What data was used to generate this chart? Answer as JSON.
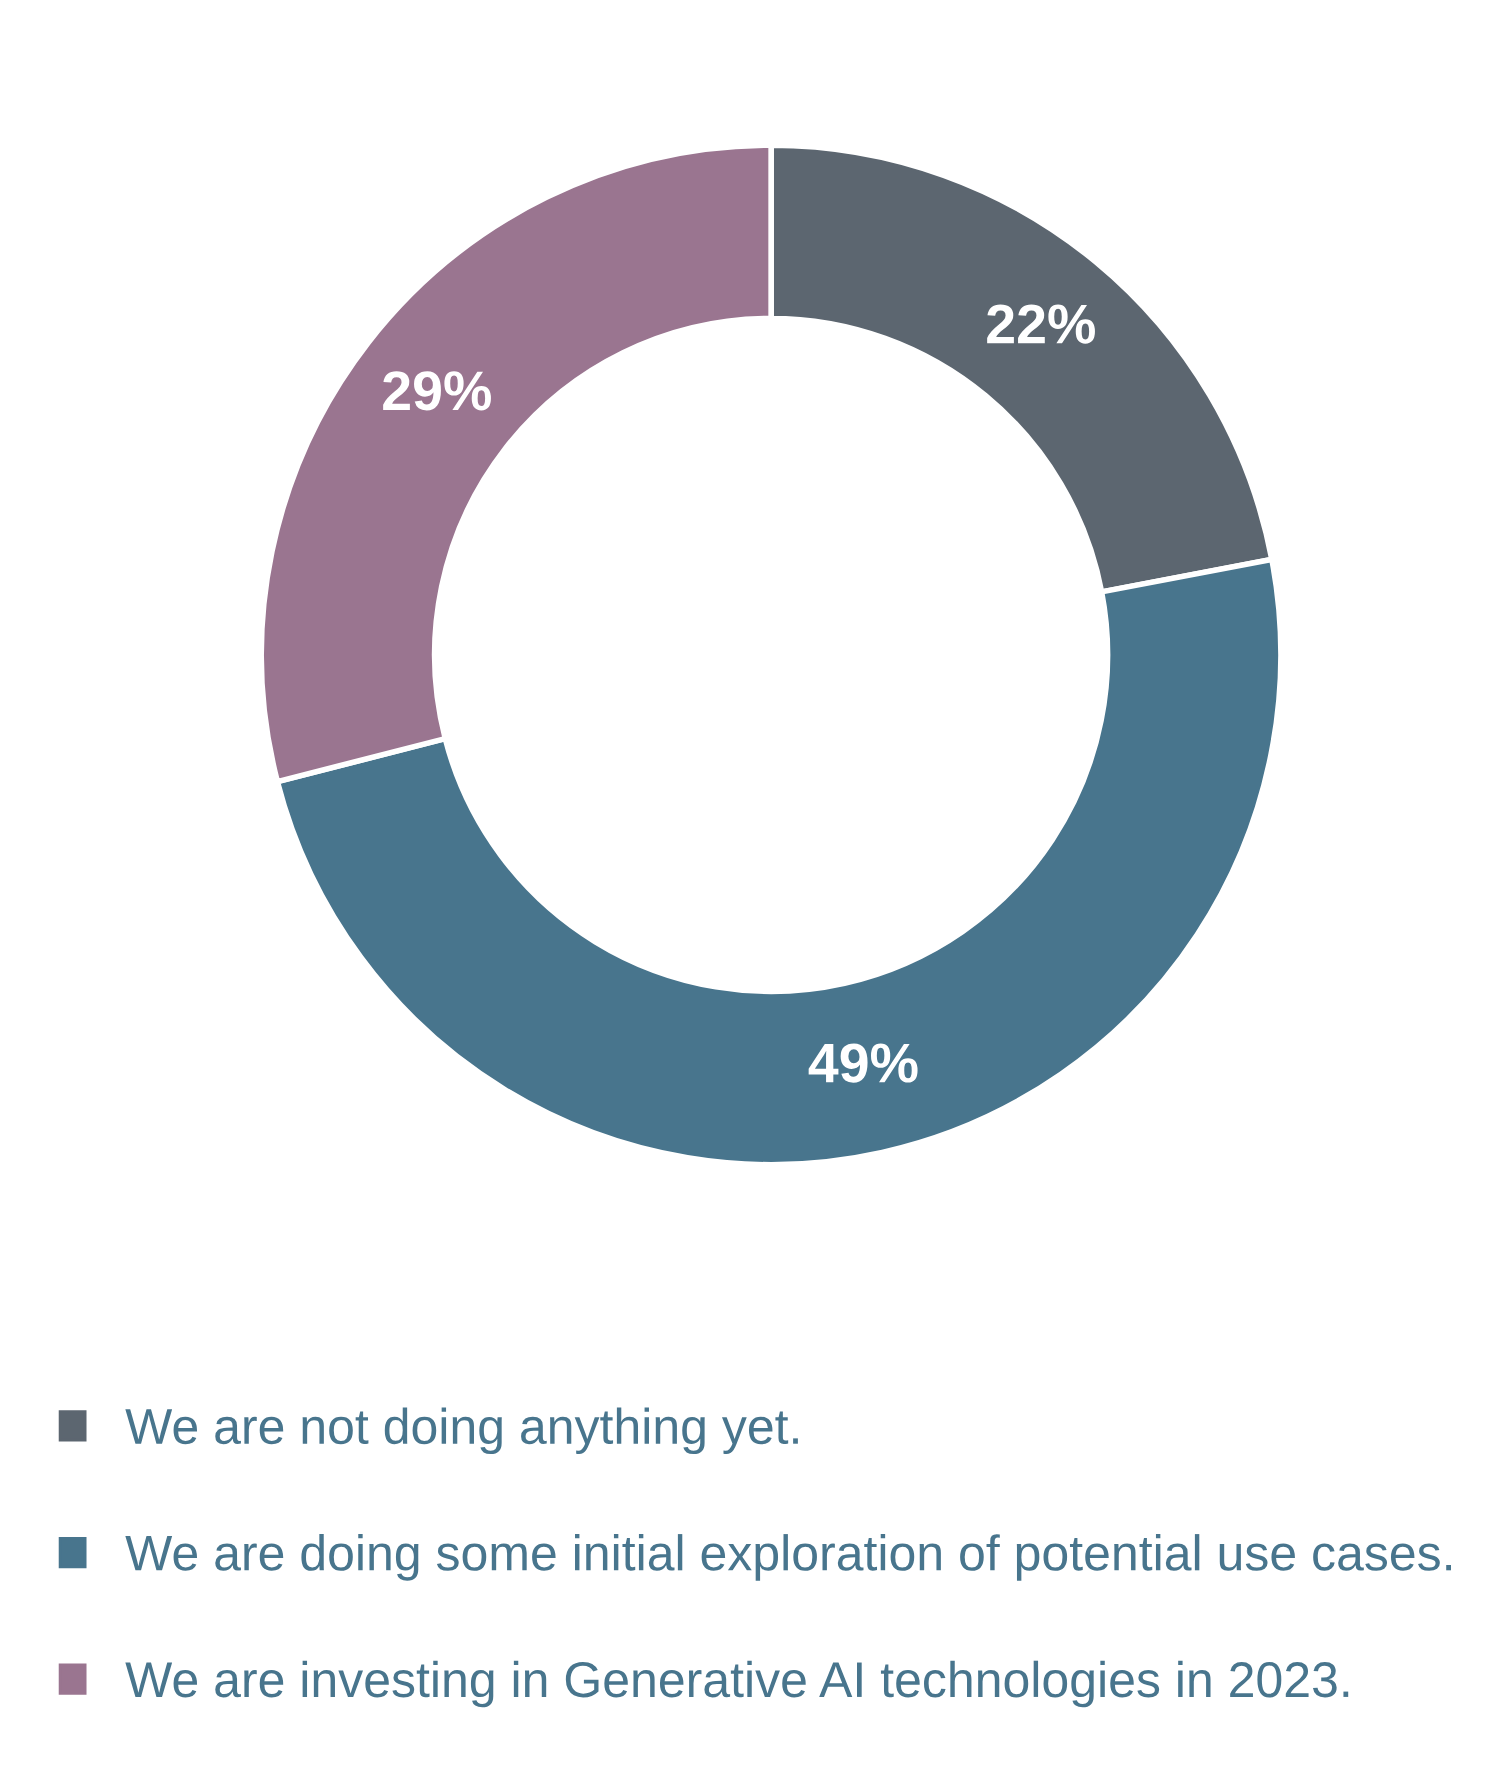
{
  "chart_data": {
    "type": "donut",
    "categories": [
      "We are not doing anything yet.",
      "We are doing some initial exploration of potential use cases.",
      "We are investing in Generative AI technologies in 2023."
    ],
    "values": [
      22,
      49,
      29
    ],
    "colors": [
      "#5c6670",
      "#48758d",
      "#9a7590"
    ],
    "value_labels": [
      "22%",
      "49%",
      "29%"
    ],
    "legend": "bottom left"
  }
}
